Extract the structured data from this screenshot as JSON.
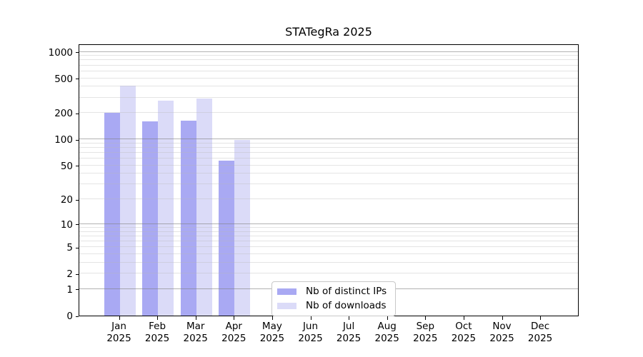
{
  "chart_data": {
    "type": "bar",
    "title": "STATegRa 2025",
    "categories": [
      "Jan",
      "Feb",
      "Mar",
      "Apr",
      "May",
      "Jun",
      "Jul",
      "Aug",
      "Sep",
      "Oct",
      "Nov",
      "Dec"
    ],
    "category_year": "2025",
    "series": [
      {
        "name": "Nb of distinct IPs",
        "color": "#a9a9f3",
        "values": [
          200,
          160,
          163,
          57,
          null,
          null,
          null,
          null,
          null,
          null,
          null,
          null
        ]
      },
      {
        "name": "Nb of downloads",
        "color": "#dbdbf8",
        "values": [
          410,
          276,
          293,
          98,
          null,
          null,
          null,
          null,
          null,
          null,
          null,
          null
        ]
      }
    ],
    "y_axis": {
      "scale": "log10(value+1)",
      "tick_labels": [
        0,
        1,
        2,
        5,
        10,
        20,
        50,
        100,
        200,
        500,
        1000
      ],
      "major_gridlines": [
        1,
        10,
        100,
        1000
      ],
      "minor_gridlines": [
        2,
        3,
        4,
        5,
        6,
        7,
        8,
        9,
        20,
        30,
        40,
        50,
        60,
        70,
        80,
        90,
        200,
        300,
        400,
        500,
        600,
        700,
        800,
        900
      ]
    },
    "x_axis": {
      "tick_position": "category-center"
    },
    "legend": {
      "position": "bottom-center"
    },
    "colors": {
      "major_grid": "rgba(130,130,130,0.62)",
      "minor_grid": "rgba(185,185,185,0.38)",
      "axis": "#000000",
      "background": "#ffffff"
    }
  }
}
